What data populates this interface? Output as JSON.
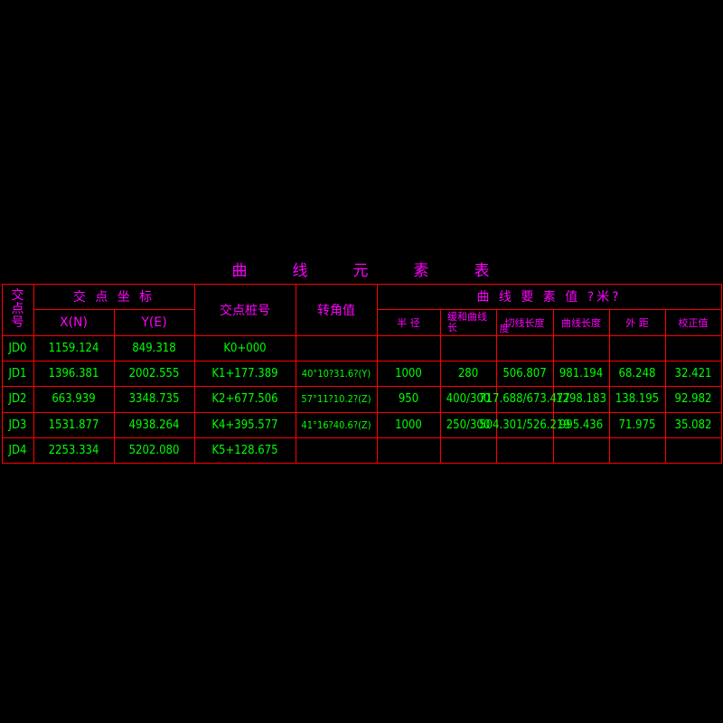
{
  "title_chars": [
    "曲",
    "线",
    "元",
    "素",
    "表"
  ],
  "headers": {
    "jd_no": [
      "交",
      "点",
      "号"
    ],
    "coord_group": "交 点 坐 标",
    "x": "X(N)",
    "y": "Y(E)",
    "station": "交点桩号",
    "angle": "转角值",
    "elements_group": "曲 线 要 素 值 ?米?",
    "radius": "半 径",
    "spiral_a": "缓和曲线",
    "spiral_b": "长",
    "tangent": "切线长度",
    "tangent_overlap": "度",
    "curve_length": "曲线长度",
    "external": "外 距",
    "correction": "校正值"
  },
  "rows": [
    {
      "jd": "JD0",
      "x": "1159.124",
      "y": "849.318",
      "station": "K0+000",
      "angle": "",
      "radius": "",
      "spiral": "",
      "tangent": "",
      "curve": "",
      "external": "",
      "correction": ""
    },
    {
      "jd": "JD1",
      "x": "1396.381",
      "y": "2002.555",
      "station": "K1+177.389",
      "angle": "40°10?31.6?(Y)",
      "radius": "1000",
      "spiral": "280",
      "tangent": "506.807",
      "curve": "981.194",
      "external": "68.248",
      "correction": "32.421"
    },
    {
      "jd": "JD2",
      "x": "663.939",
      "y": "3348.735",
      "station": "K2+677.506",
      "angle": "57°11?10.2?(Z)",
      "radius": "950",
      "spiral": "400/300",
      "tangent": "717.688/673.477",
      "curve": "1298.183",
      "external": "138.195",
      "correction": "92.982"
    },
    {
      "jd": "JD3",
      "x": "1531.877",
      "y": "4938.264",
      "station": "K4+395.577",
      "angle": "41°16?40.6?(Z)",
      "radius": "1000",
      "spiral": "250/300",
      "tangent": "504.301/526.219",
      "curve": "995.436",
      "external": "71.975",
      "correction": "35.082"
    },
    {
      "jd": "JD4",
      "x": "2253.334",
      "y": "5202.080",
      "station": "K5+128.675",
      "angle": "",
      "radius": "",
      "spiral": "",
      "tangent": "",
      "curve": "",
      "external": "",
      "correction": ""
    }
  ],
  "colors": {
    "line": "#ff0000",
    "header_text": "#ff00ff",
    "value_text": "#00ff00",
    "background": "#000000"
  }
}
